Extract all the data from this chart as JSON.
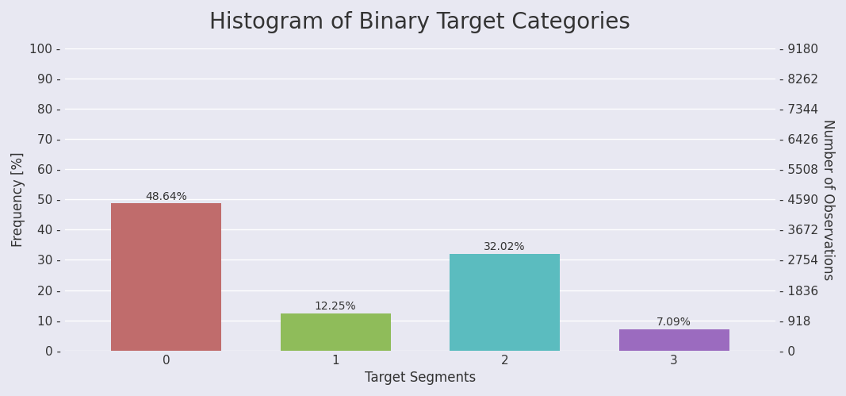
{
  "title": "Histogram of Binary Target Categories",
  "categories": [
    "0",
    "1",
    "2",
    "3"
  ],
  "frequencies": [
    48.64,
    12.25,
    32.02,
    7.09
  ],
  "bar_colors": [
    "#c06c6c",
    "#8fbc5a",
    "#5bbcbf",
    "#9b6bbf"
  ],
  "xlabel": "Target Segments",
  "ylabel_left": "Frequency [%]",
  "ylabel_right": "Number of Observations",
  "ylim_left": [
    0,
    100
  ],
  "ylim_right": [
    0,
    9180
  ],
  "yticks_left": [
    0,
    10,
    20,
    30,
    40,
    50,
    60,
    70,
    80,
    90,
    100
  ],
  "yticks_right": [
    0,
    918,
    1836,
    2754,
    3672,
    4590,
    5508,
    6426,
    7344,
    8262,
    9180
  ],
  "total_observations": 9180,
  "background_color": "#e8e8f2",
  "plot_bg_color": "#e8e8f2",
  "title_fontsize": 20,
  "label_fontsize": 12,
  "tick_fontsize": 11,
  "bar_label_fontsize": 10,
  "bar_width": 0.65
}
